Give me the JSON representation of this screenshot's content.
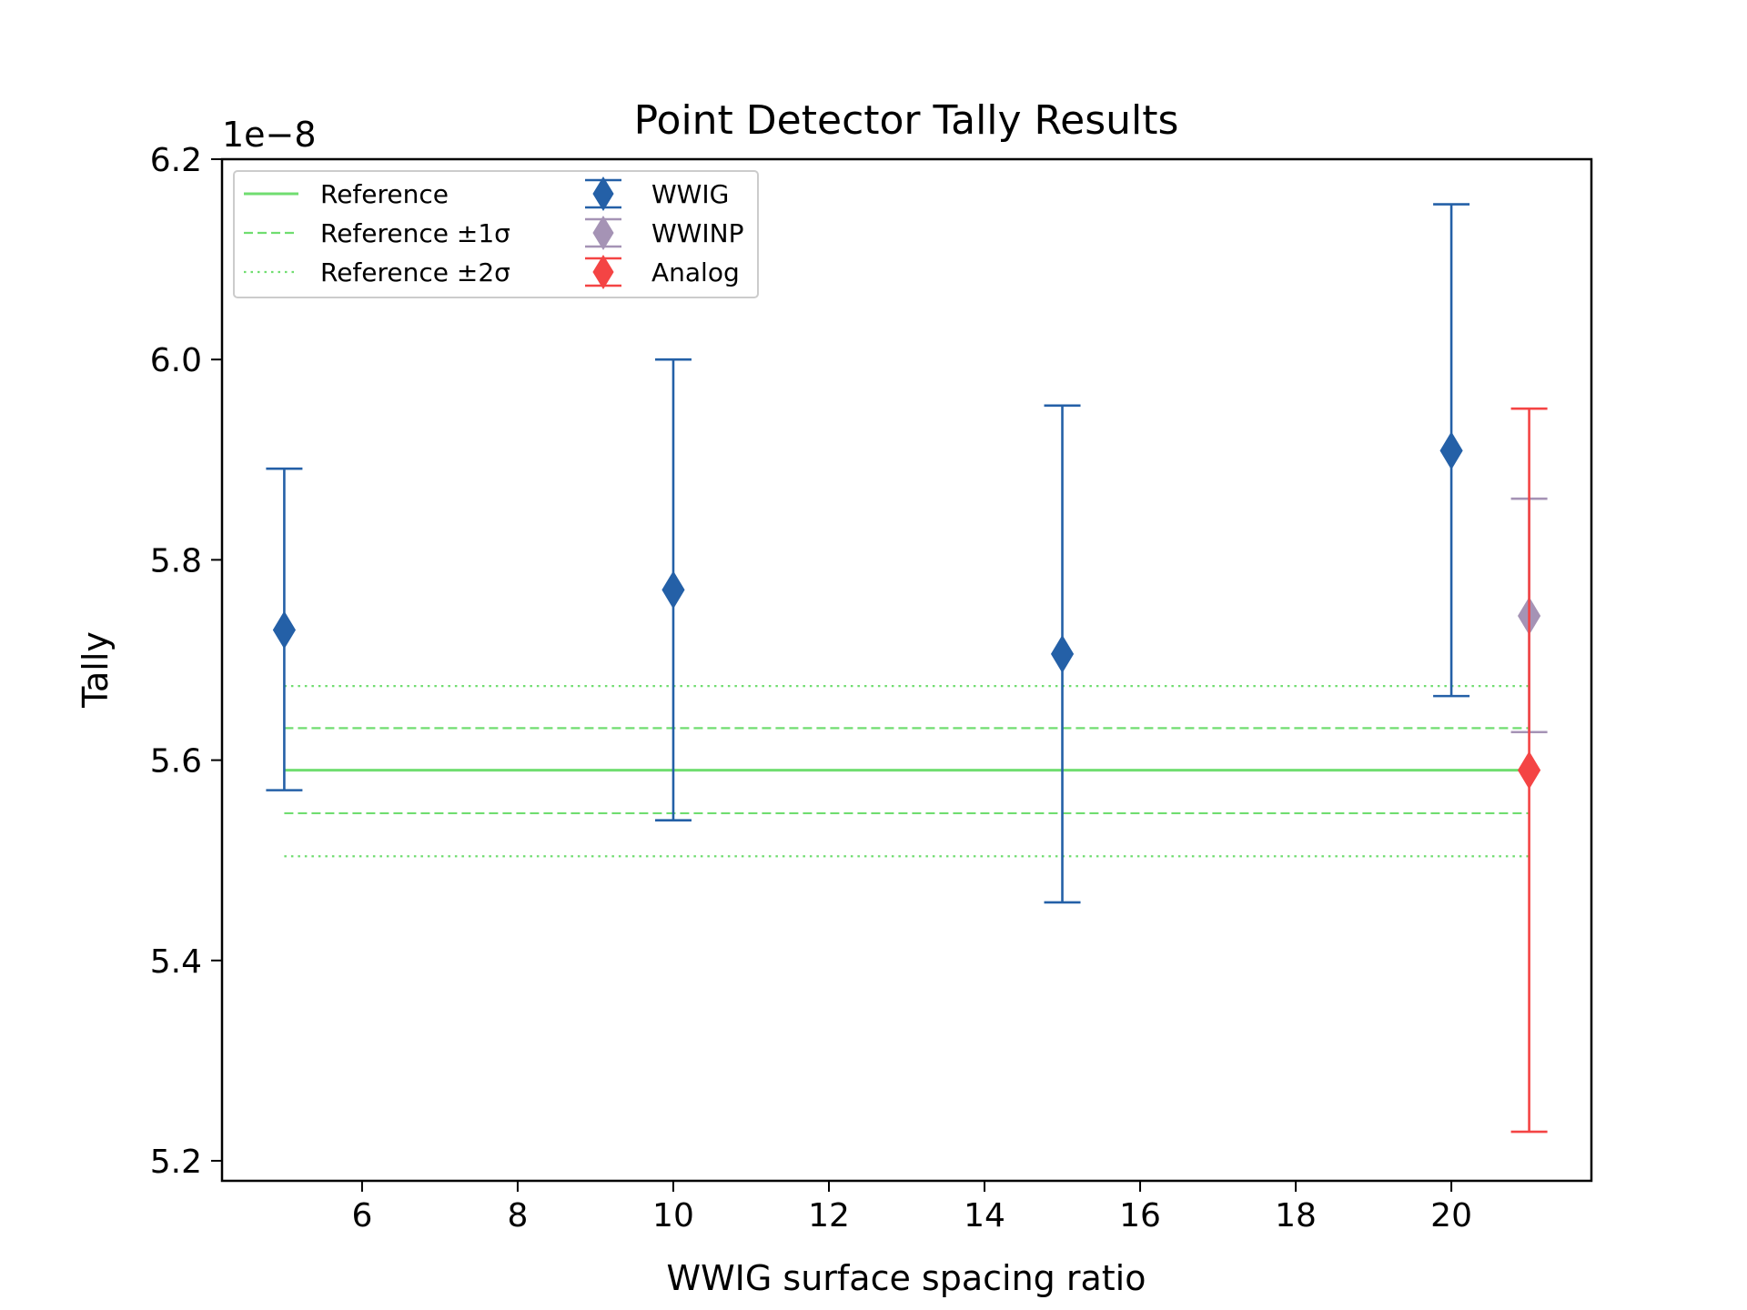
{
  "chart_data": {
    "type": "scatter",
    "title": "Point Detector Tally Results",
    "xlabel": "WWIG surface spacing ratio",
    "ylabel": "Tally",
    "y_offset_label": "1e−8",
    "xlim": [
      4.2,
      21.8
    ],
    "ylim": [
      5.18,
      6.2
    ],
    "x_ticks": [
      6,
      8,
      10,
      12,
      14,
      16,
      18,
      20
    ],
    "x_tick_labels": [
      "6",
      "8",
      "10",
      "12",
      "14",
      "16",
      "18",
      "20"
    ],
    "y_ticks": [
      5.2,
      5.4,
      5.6,
      5.8,
      6.0,
      6.2
    ],
    "y_tick_labels": [
      "5.2",
      "5.4",
      "5.6",
      "5.8",
      "6.0",
      "6.2"
    ],
    "grid": false,
    "legend_position": "top-left",
    "reference": {
      "x_range": [
        5,
        21
      ],
      "value": 5.59,
      "sigma_low": 5.547,
      "sigma_high": 5.632,
      "two_sigma_low": 5.504,
      "two_sigma_high": 5.674,
      "color": "#70dd70",
      "labels": [
        "Reference",
        "Reference ±1σ",
        "Reference ±2σ"
      ]
    },
    "series": [
      {
        "name": "WWIG",
        "color": "#2460a7",
        "points": [
          {
            "x": 5,
            "y": 5.73,
            "ylow": 5.57,
            "yhigh": 5.891
          },
          {
            "x": 10,
            "y": 5.77,
            "ylow": 5.54,
            "yhigh": 6.0
          },
          {
            "x": 15,
            "y": 5.706,
            "ylow": 5.458,
            "yhigh": 5.954
          },
          {
            "x": 20,
            "y": 5.909,
            "ylow": 5.664,
            "yhigh": 6.155
          }
        ]
      },
      {
        "name": "WWINP",
        "color": "#a593b5",
        "points": [
          {
            "x": 21,
            "y": 5.744,
            "ylow": 5.628,
            "yhigh": 5.861
          }
        ]
      },
      {
        "name": "Analog",
        "color": "#f44444",
        "points": [
          {
            "x": 21,
            "y": 5.59,
            "ylow": 5.229,
            "yhigh": 5.951
          }
        ]
      }
    ]
  }
}
